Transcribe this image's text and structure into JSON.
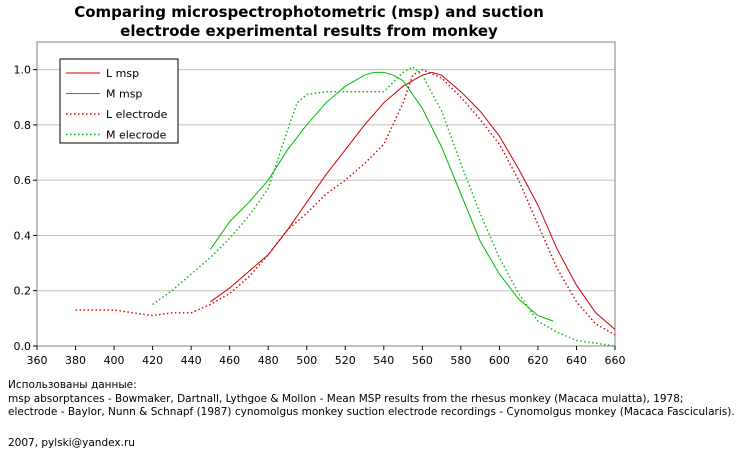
{
  "chart_data": {
    "type": "line",
    "title": "Comparing microspectrophotometric (msp) and suction electrode experimental results from monkey",
    "title_lines": [
      "Comparing microspectrophotometric (msp) and suction",
      "electrode experimental results from monkey"
    ],
    "xlabel": "",
    "ylabel": "",
    "xlim": [
      360,
      660
    ],
    "ylim": [
      0,
      1.1
    ],
    "x_ticks": [
      360,
      380,
      400,
      420,
      440,
      460,
      480,
      500,
      520,
      540,
      560,
      580,
      600,
      620,
      640,
      660
    ],
    "y_ticks": [
      0.0,
      0.2,
      0.4,
      0.6,
      0.8,
      1.0
    ],
    "y_tick_labels": [
      "0.0",
      "0.2",
      "0.4",
      "0.6",
      "0.8",
      "1.0"
    ],
    "grid": "horizontal",
    "legend_position": "top-left",
    "series": [
      {
        "name": "L msp",
        "color": "#cc0000",
        "style": "solid",
        "x": [
          450,
          460,
          470,
          480,
          490,
          500,
          510,
          520,
          530,
          540,
          550,
          560,
          565,
          570,
          580,
          590,
          600,
          610,
          620,
          630,
          640,
          650,
          660
        ],
        "y": [
          0.16,
          0.21,
          0.27,
          0.33,
          0.42,
          0.52,
          0.62,
          0.71,
          0.8,
          0.88,
          0.94,
          0.98,
          0.99,
          0.98,
          0.92,
          0.85,
          0.76,
          0.64,
          0.51,
          0.35,
          0.22,
          0.12,
          0.06
        ]
      },
      {
        "name": "M msp",
        "color": "#00bb00",
        "style": "solid",
        "x": [
          450,
          460,
          470,
          480,
          490,
          500,
          510,
          520,
          530,
          535,
          540,
          545,
          550,
          560,
          570,
          580,
          590,
          600,
          610,
          620,
          628
        ],
        "y": [
          0.35,
          0.45,
          0.52,
          0.6,
          0.71,
          0.8,
          0.88,
          0.94,
          0.98,
          0.99,
          0.99,
          0.98,
          0.96,
          0.86,
          0.72,
          0.55,
          0.38,
          0.26,
          0.17,
          0.11,
          0.09
        ]
      },
      {
        "name": "L electrode",
        "color": "#cc0000",
        "style": "dotted",
        "x": [
          380,
          390,
          400,
          410,
          420,
          430,
          440,
          450,
          460,
          470,
          480,
          490,
          500,
          510,
          520,
          530,
          540,
          550,
          555,
          560,
          570,
          580,
          590,
          600,
          610,
          620,
          630,
          640,
          650,
          660
        ],
        "y": [
          0.13,
          0.13,
          0.13,
          0.12,
          0.11,
          0.12,
          0.12,
          0.15,
          0.19,
          0.25,
          0.33,
          0.42,
          0.48,
          0.55,
          0.6,
          0.66,
          0.73,
          0.88,
          0.98,
          1.0,
          0.97,
          0.9,
          0.82,
          0.73,
          0.6,
          0.44,
          0.28,
          0.16,
          0.08,
          0.04
        ]
      },
      {
        "name": "M elecrode",
        "color": "#00bb00",
        "style": "dotted",
        "x": [
          420,
          430,
          440,
          450,
          460,
          470,
          480,
          490,
          495,
          500,
          510,
          520,
          530,
          540,
          550,
          555,
          560,
          570,
          580,
          590,
          600,
          610,
          620,
          630,
          640,
          650,
          660
        ],
        "y": [
          0.15,
          0.2,
          0.26,
          0.32,
          0.39,
          0.47,
          0.57,
          0.78,
          0.88,
          0.91,
          0.92,
          0.92,
          0.92,
          0.92,
          0.99,
          1.01,
          0.98,
          0.85,
          0.66,
          0.48,
          0.32,
          0.19,
          0.09,
          0.05,
          0.02,
          0.01,
          0.0
        ]
      }
    ]
  },
  "notes": {
    "line1": "Использованы данные:",
    "line2": "msp absorptances - Bowmaker, Dartnall, Lythgoe & Mollon - Mean MSP results from the rhesus monkey (Macaca mulatta), 1978;",
    "line3": "electrode - Baylor, Nunn & Schnapf (1987) cynomolgus monkey suction electrode recordings - Cynomolgus monkey (Macaca Fascicularis).",
    "signature": "2007, pylski@yandex.ru"
  }
}
